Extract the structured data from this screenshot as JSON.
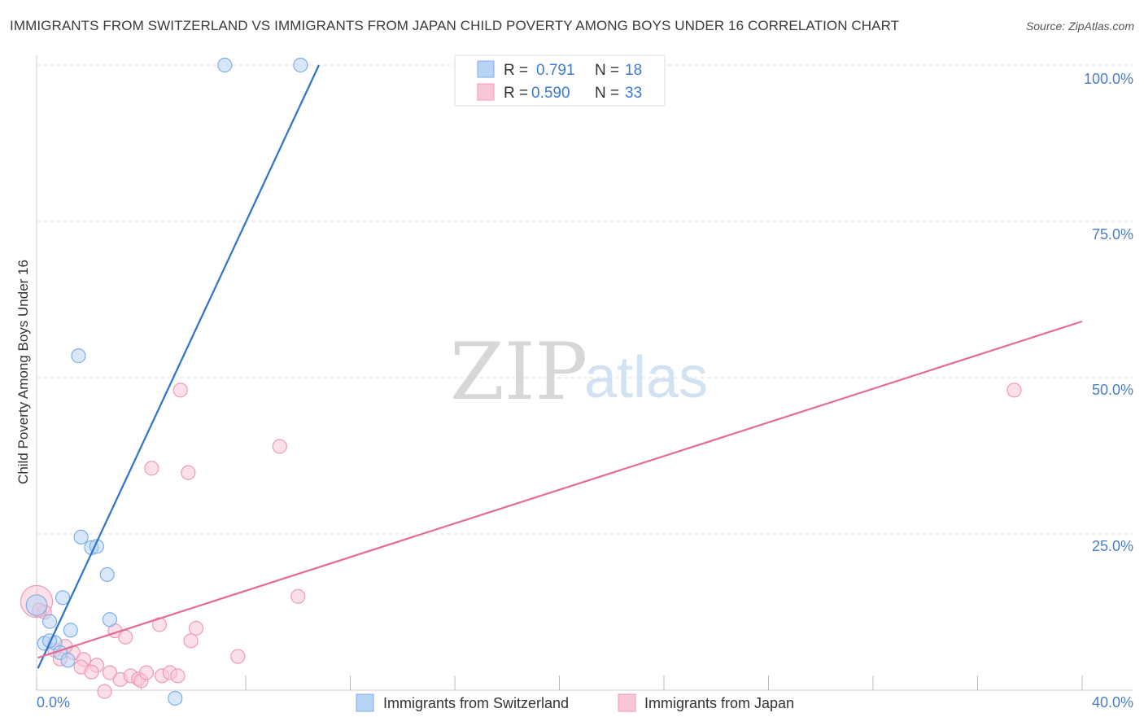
{
  "title": "IMMIGRANTS FROM SWITZERLAND VS IMMIGRANTS FROM JAPAN CHILD POVERTY AMONG BOYS UNDER 16 CORRELATION CHART",
  "source": "Source: ZipAtlas.com",
  "watermark": {
    "zip": "ZIP",
    "atlas": "atlas"
  },
  "colors": {
    "switzerland_fill": "#b8d3f4",
    "switzerland_stroke": "#7eaee6",
    "switzerland_line": "#2f72cc",
    "japan_fill": "#f9c6d6",
    "japan_stroke": "#ef9ab5",
    "japan_line": "#e46b95",
    "grid": "#dddddd",
    "tick_text": "#4a7fc8"
  },
  "legend": {
    "r_label": "R =",
    "n_label": "N =",
    "entries": [
      {
        "r": "0.791",
        "n": "18"
      },
      {
        "r": "0.590",
        "n": "33"
      }
    ]
  },
  "chart_data": {
    "type": "scatter",
    "title": "IMMIGRANTS FROM SWITZERLAND VS IMMIGRANTS FROM JAPAN CHILD POVERTY AMONG BOYS UNDER 16 CORRELATION CHART",
    "xlabel": "",
    "ylabel": "Child Poverty Among Boys Under 16",
    "xlim": [
      0,
      40
    ],
    "ylim": [
      0,
      100
    ],
    "x_tick_labels": [
      "0.0%",
      "40.0%"
    ],
    "y_tick_labels": [
      "25.0%",
      "50.0%",
      "75.0%",
      "100.0%"
    ],
    "y_ticks": [
      25,
      50,
      75,
      100
    ],
    "series": [
      {
        "name": "Immigrants from Switzerland",
        "r": 0.791,
        "n": 18,
        "trend": {
          "x0": 0.05,
          "y0": 3.5,
          "x1": 10.8,
          "y1": 100
        },
        "points": [
          {
            "x": 7.2,
            "y": 100,
            "s": 1
          },
          {
            "x": 10.1,
            "y": 100,
            "s": 1
          },
          {
            "x": 1.6,
            "y": 53.5,
            "s": 1
          },
          {
            "x": 1.7,
            "y": 24.5,
            "s": 1
          },
          {
            "x": 2.1,
            "y": 22.8,
            "s": 1
          },
          {
            "x": 2.3,
            "y": 23.0,
            "s": 1
          },
          {
            "x": 2.7,
            "y": 18.5,
            "s": 1
          },
          {
            "x": 1.0,
            "y": 14.8,
            "s": 1
          },
          {
            "x": 2.8,
            "y": 11.3,
            "s": 1
          },
          {
            "x": 0.5,
            "y": 11.0,
            "s": 1
          },
          {
            "x": 1.3,
            "y": 9.6,
            "s": 1
          },
          {
            "x": 0.0,
            "y": 13.6,
            "s": 1.5
          },
          {
            "x": 0.3,
            "y": 7.5,
            "s": 1
          },
          {
            "x": 0.7,
            "y": 7.6,
            "s": 1
          },
          {
            "x": 0.5,
            "y": 7.9,
            "s": 1
          },
          {
            "x": 0.9,
            "y": 6.0,
            "s": 1
          },
          {
            "x": 1.2,
            "y": 4.8,
            "s": 1
          },
          {
            "x": 5.3,
            "y": -1.3,
            "s": 1
          }
        ]
      },
      {
        "name": "Immigrants from Japan",
        "r": 0.59,
        "n": 33,
        "trend": {
          "x0": 0.05,
          "y0": 5.2,
          "x1": 40,
          "y1": 59
        },
        "points": [
          {
            "x": 0.0,
            "y": 14.2,
            "s": 2.3
          },
          {
            "x": 0.3,
            "y": 12.5,
            "s": 1
          },
          {
            "x": 5.5,
            "y": 48.0,
            "s": 1
          },
          {
            "x": 37.4,
            "y": 48.0,
            "s": 1
          },
          {
            "x": 9.3,
            "y": 39.0,
            "s": 1
          },
          {
            "x": 4.4,
            "y": 35.5,
            "s": 1
          },
          {
            "x": 5.8,
            "y": 34.8,
            "s": 1
          },
          {
            "x": 10.0,
            "y": 15.0,
            "s": 1
          },
          {
            "x": 4.7,
            "y": 10.5,
            "s": 1
          },
          {
            "x": 3.0,
            "y": 9.5,
            "s": 1
          },
          {
            "x": 6.1,
            "y": 9.9,
            "s": 1
          },
          {
            "x": 3.4,
            "y": 8.5,
            "s": 1
          },
          {
            "x": 5.9,
            "y": 7.9,
            "s": 1
          },
          {
            "x": 7.7,
            "y": 5.4,
            "s": 1
          },
          {
            "x": 0.7,
            "y": 6.4,
            "s": 1
          },
          {
            "x": 0.9,
            "y": 5.0,
            "s": 1
          },
          {
            "x": 1.4,
            "y": 6.0,
            "s": 1
          },
          {
            "x": 1.8,
            "y": 4.9,
            "s": 1
          },
          {
            "x": 2.3,
            "y": 4.0,
            "s": 1
          },
          {
            "x": 1.7,
            "y": 3.7,
            "s": 1
          },
          {
            "x": 2.1,
            "y": 2.9,
            "s": 1
          },
          {
            "x": 2.8,
            "y": 2.8,
            "s": 1
          },
          {
            "x": 3.2,
            "y": 1.7,
            "s": 1
          },
          {
            "x": 3.6,
            "y": 2.3,
            "s": 1
          },
          {
            "x": 3.9,
            "y": 1.8,
            "s": 1
          },
          {
            "x": 4.0,
            "y": 1.5,
            "s": 1
          },
          {
            "x": 4.2,
            "y": 2.8,
            "s": 1
          },
          {
            "x": 4.8,
            "y": 2.3,
            "s": 1
          },
          {
            "x": 5.1,
            "y": 2.8,
            "s": 1
          },
          {
            "x": 5.4,
            "y": 2.3,
            "s": 1
          },
          {
            "x": 2.6,
            "y": -0.2,
            "s": 1
          },
          {
            "x": 0.1,
            "y": 12.8,
            "s": 1
          },
          {
            "x": 1.1,
            "y": 7.0,
            "s": 1
          }
        ]
      }
    ]
  }
}
